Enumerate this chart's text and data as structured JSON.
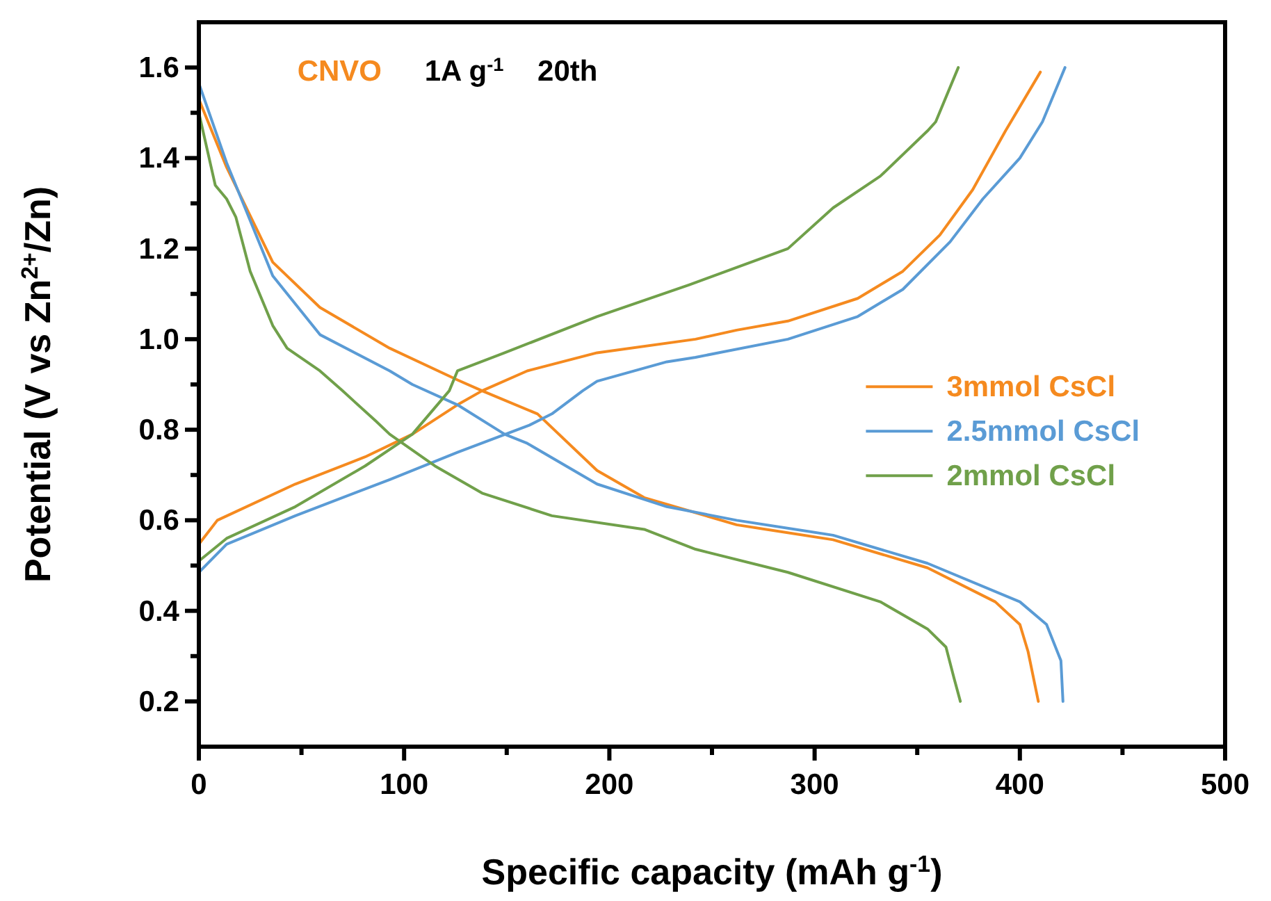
{
  "chart_data": {
    "type": "line",
    "xlabel": "Specific capacity (mAh g$^{-1}$)",
    "ylabel": "Potential (V vs Zn$^{2+}$/Zn)",
    "annotations": [
      "CNVO",
      "1A g$^{-1}$",
      "20th"
    ],
    "xlim": [
      0,
      500
    ],
    "ylim": [
      0.1,
      1.7
    ],
    "xticks": [
      0,
      {
        "value": 50,
        "label": null
      },
      100,
      {
        "value": 150,
        "label": null
      },
      200,
      {
        "value": 250,
        "label": null
      },
      300,
      {
        "value": 350,
        "label": null
      },
      400,
      {
        "value": 450,
        "label": null
      },
      500
    ],
    "yticks": [
      0.2,
      {
        "value": 0.3,
        "label": null
      },
      0.4,
      {
        "value": 0.5,
        "label": null
      },
      0.6,
      {
        "value": 0.7,
        "label": null
      },
      0.8,
      {
        "value": 0.9,
        "label": null
      },
      {
        "value": 1.0,
        "label": "1.0"
      },
      {
        "value": 1.1,
        "label": null
      },
      1.2,
      {
        "value": 1.3,
        "label": null
      },
      1.4,
      {
        "value": 1.5,
        "label": null
      },
      1.6
    ],
    "grid": false,
    "legend": "right",
    "marker": "none",
    "line_style": "solid",
    "series": [
      {
        "name": "3mmol CsCl",
        "color": "#f58a1f",
        "x": [
          0,
          13.5,
          36,
          59,
          93,
          126,
          138,
          165,
          194,
          217,
          262,
          309,
          355,
          388,
          400,
          404,
          409
        ],
        "values": [
          1.53,
          1.38,
          1.17,
          1.07,
          0.98,
          0.91,
          0.886,
          0.835,
          0.71,
          0.65,
          0.59,
          0.557,
          0.495,
          0.42,
          0.37,
          0.31,
          0.2
        ]
      },
      {
        "color": "#f58a1f",
        "x": [
          0,
          0,
          9,
          47,
          81,
          104,
          126,
          138,
          160,
          194,
          242,
          262,
          287,
          321,
          343,
          361,
          377,
          393,
          410
        ],
        "values": [
          0.52,
          0.547,
          0.6,
          0.68,
          0.74,
          0.79,
          0.855,
          0.886,
          0.93,
          0.97,
          1.0,
          1.02,
          1.04,
          1.09,
          1.15,
          1.23,
          1.33,
          1.46,
          1.59
        ]
      },
      {
        "name": "2.5mmol CsCl",
        "color": "#5a9bd5",
        "x": [
          0,
          13.5,
          36,
          59,
          93,
          104,
          126,
          149,
          160,
          194,
          228,
          262,
          309,
          355,
          400,
          413,
          420,
          421
        ],
        "values": [
          1.565,
          1.39,
          1.14,
          1.01,
          0.93,
          0.9,
          0.855,
          0.79,
          0.77,
          0.68,
          0.63,
          0.6,
          0.567,
          0.505,
          0.42,
          0.37,
          0.29,
          0.2
        ]
      },
      {
        "color": "#5a9bd5",
        "x": [
          0,
          13.5,
          47,
          93,
          126,
          161,
          172,
          187,
          194,
          228,
          242,
          287,
          321,
          343,
          366,
          382,
          400,
          411,
          422
        ],
        "values": [
          0.485,
          0.547,
          0.61,
          0.69,
          0.75,
          0.81,
          0.835,
          0.886,
          0.907,
          0.95,
          0.96,
          1.0,
          1.05,
          1.11,
          1.215,
          1.31,
          1.4,
          1.48,
          1.6
        ]
      },
      {
        "name": "2mmol CsCl",
        "color": "#70a04a",
        "x": [
          0,
          8,
          13.5,
          18,
          25,
          36,
          43,
          59,
          70,
          86,
          93,
          115,
          138,
          172,
          217,
          242,
          287,
          332,
          355,
          364,
          368,
          371
        ],
        "values": [
          1.5,
          1.34,
          1.31,
          1.27,
          1.15,
          1.03,
          0.98,
          0.93,
          0.886,
          0.82,
          0.79,
          0.72,
          0.66,
          0.61,
          0.58,
          0.536,
          0.485,
          0.42,
          0.36,
          0.32,
          0.25,
          0.2
        ]
      },
      {
        "color": "#70a04a",
        "x": [
          0,
          13.5,
          47,
          81,
          104,
          122,
          126,
          149,
          194,
          239,
          287,
          309,
          332,
          355,
          359,
          370
        ],
        "values": [
          0.51,
          0.56,
          0.63,
          0.72,
          0.79,
          0.886,
          0.93,
          0.97,
          1.05,
          1.12,
          1.2,
          1.29,
          1.36,
          1.46,
          1.48,
          1.6
        ]
      }
    ]
  }
}
